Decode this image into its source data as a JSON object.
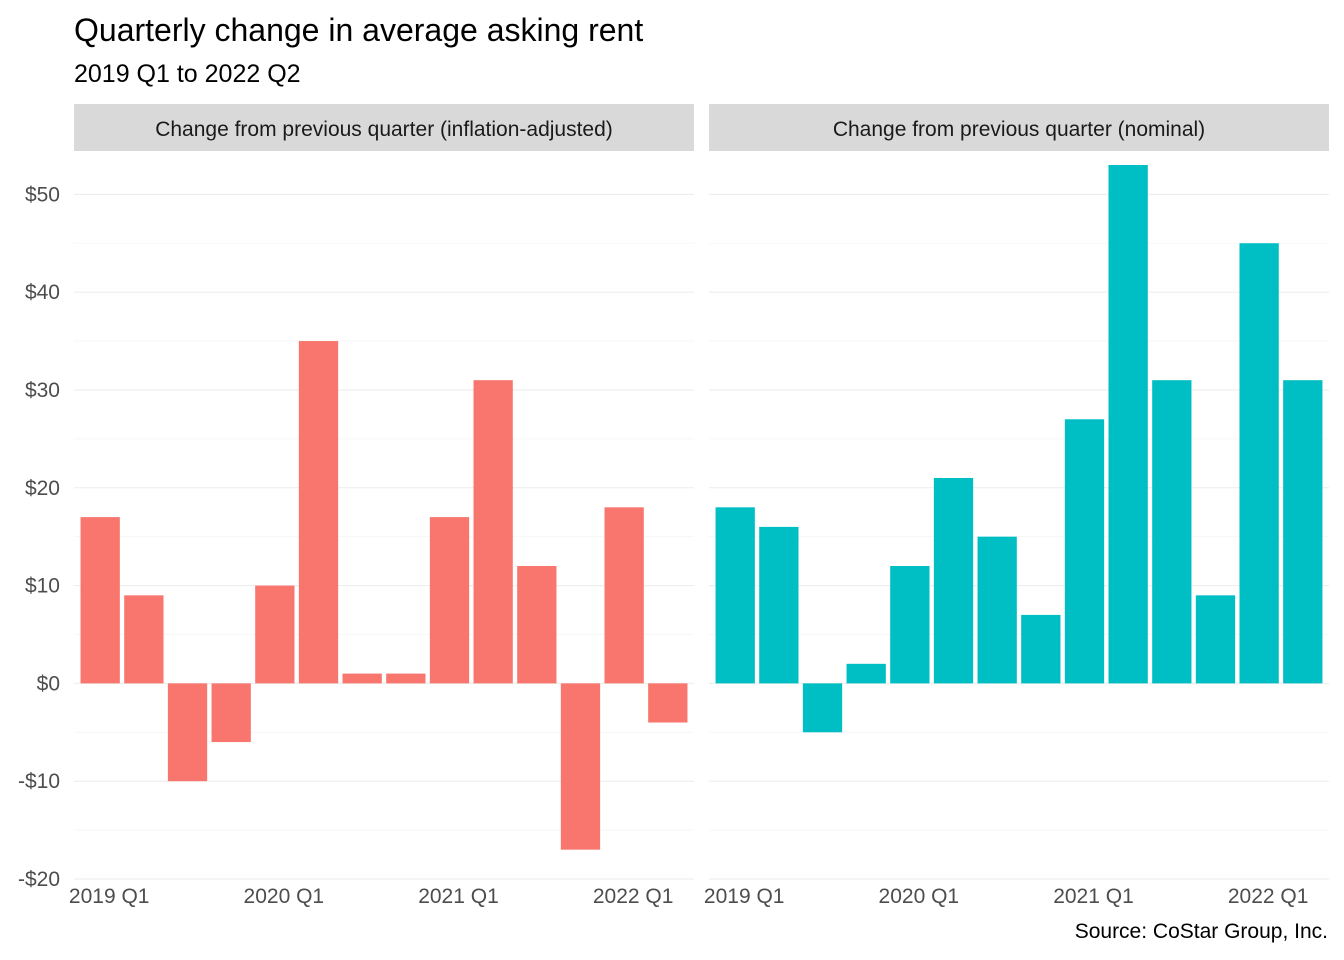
{
  "title": "Quarterly change in average asking rent",
  "subtitle": "2019 Q1 to 2022 Q2",
  "caption": "Source: CoStar Group, Inc.",
  "colors": {
    "inflation_adjusted": "#F8766D",
    "nominal": "#00BFC4",
    "strip_bg": "#D9D9D9",
    "grid": "#EBEBEB"
  },
  "chart_data": {
    "type": "bar",
    "ylim": [
      -20,
      53
    ],
    "y_ticks": [
      -20,
      -10,
      0,
      10,
      20,
      30,
      40,
      50
    ],
    "y_tick_labels": [
      "-$20",
      "-$10",
      "$0",
      "$10",
      "$20",
      "$30",
      "$40",
      "$50"
    ],
    "categories": [
      "2019 Q1",
      "2019 Q2",
      "2019 Q3",
      "2019 Q4",
      "2020 Q1",
      "2020 Q2",
      "2020 Q3",
      "2020 Q4",
      "2021 Q1",
      "2021 Q2",
      "2021 Q3",
      "2021 Q4",
      "2022 Q1",
      "2022 Q2"
    ],
    "x_tick_labels": [
      "2019 Q1",
      "2020 Q1",
      "2021 Q1",
      "2022 Q1"
    ],
    "grid": true,
    "legend": "none",
    "panels": [
      {
        "label": "Change from previous quarter (inflation-adjusted)",
        "color": "#F8766D",
        "values": [
          17,
          9,
          -10,
          -6,
          10,
          35,
          1,
          1,
          17,
          31,
          12,
          -17,
          18,
          -4
        ]
      },
      {
        "label": "Change from previous quarter (nominal)",
        "color": "#00BFC4",
        "values": [
          18,
          16,
          -5,
          2,
          12,
          21,
          15,
          7,
          27,
          53,
          31,
          9,
          45,
          31
        ]
      }
    ]
  }
}
